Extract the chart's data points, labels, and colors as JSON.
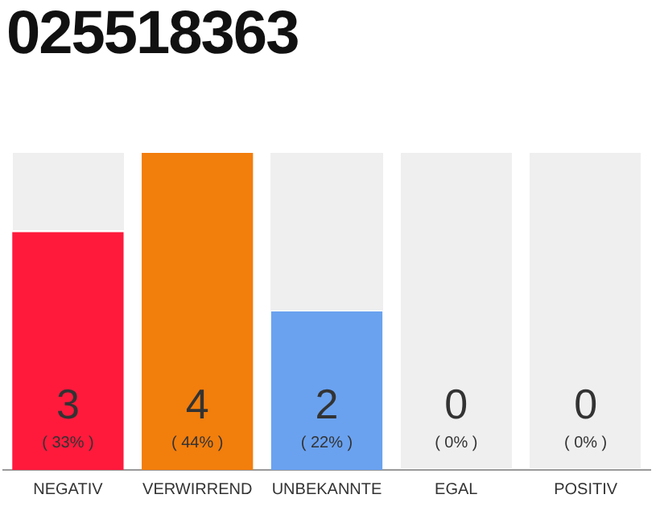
{
  "chart_data": {
    "type": "bar",
    "title": "025518363",
    "categories": [
      "NEGATIV",
      "VERWIRREND",
      "UNBEKANNTE",
      "EGAL",
      "POSITIV"
    ],
    "values": [
      3,
      4,
      2,
      0,
      0
    ],
    "colors": [
      "#ff1a3c",
      "#f27e0c",
      "#6aa2f0",
      "#6aa2f0",
      "#6aa2f0"
    ],
    "value_labels": [
      "3\n( 33% )",
      "4\n( 44% )",
      "2\n( 22% )",
      "0\n( 0% )",
      "0\n( 0% )"
    ],
    "grid": false,
    "legend": false
  }
}
